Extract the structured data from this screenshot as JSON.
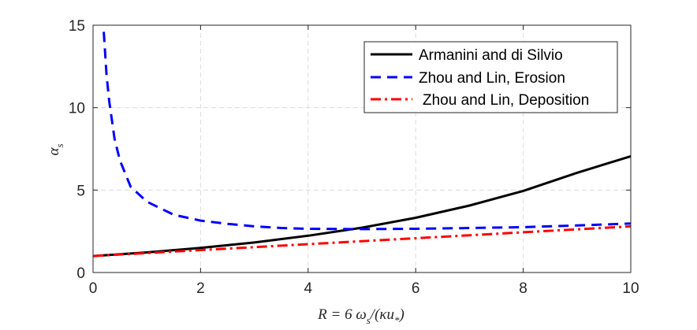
{
  "chart_data": {
    "type": "line",
    "xlim": [
      0,
      10
    ],
    "ylim": [
      0,
      15
    ],
    "x_ticks": [
      0,
      2,
      4,
      6,
      8,
      10
    ],
    "y_ticks": [
      0,
      5,
      10,
      15
    ],
    "grid": true,
    "legend_position": "top-right",
    "xlabel": {
      "main": "R = 6 ω",
      "main_sub": "s",
      "rest": "/(κu",
      "rest_sub": "*",
      "close": ")"
    },
    "ylabel": {
      "main": "α",
      "sub": "s"
    },
    "series": [
      {
        "name": "Armanini and di Silvio",
        "color": "#000000",
        "style": "solid",
        "x": [
          0,
          1,
          2,
          3,
          4,
          5,
          6,
          7,
          8,
          9,
          10
        ],
        "y": [
          1.0,
          1.22,
          1.49,
          1.82,
          2.23,
          2.72,
          3.32,
          4.06,
          4.95,
          6.05,
          7.05
        ]
      },
      {
        "name": "Zhou and Lin, Erosion",
        "color": "#0000ff",
        "style": "dashed",
        "x": [
          0.2,
          0.25,
          0.3,
          0.4,
          0.5,
          0.7,
          1.0,
          1.5,
          2.0,
          2.5,
          3.0,
          3.5,
          4.0,
          5.0,
          6.0,
          7.0,
          8.0,
          9.0,
          10.0
        ],
        "y": [
          14.6,
          12.0,
          10.4,
          8.1,
          6.8,
          5.2,
          4.3,
          3.5,
          3.15,
          2.95,
          2.8,
          2.7,
          2.65,
          2.63,
          2.65,
          2.7,
          2.75,
          2.85,
          2.97
        ]
      },
      {
        "name": "Zhou and Lin, Deposition",
        "color": "#ff0000",
        "style": "dashdot",
        "x": [
          0,
          1,
          2,
          3,
          4,
          5,
          6,
          7,
          8,
          9,
          10
        ],
        "y": [
          1.0,
          1.18,
          1.36,
          1.54,
          1.72,
          1.9,
          2.08,
          2.26,
          2.44,
          2.62,
          2.8
        ]
      }
    ]
  }
}
